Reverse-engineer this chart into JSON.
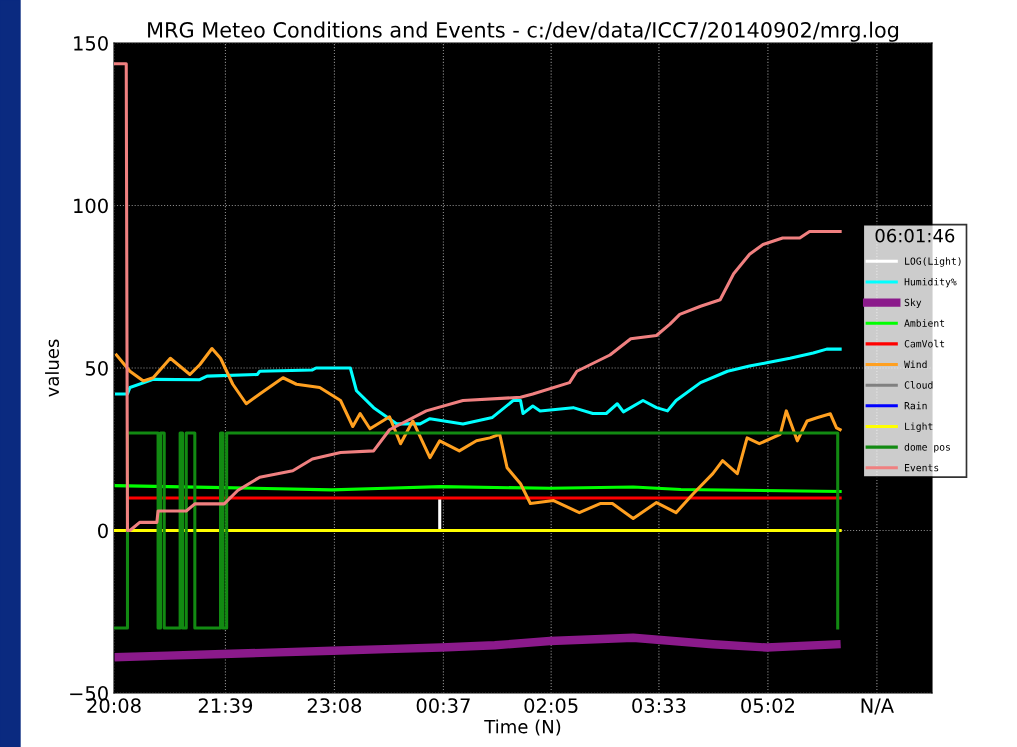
{
  "chart_data": {
    "type": "line",
    "title": "MRG Meteo Conditions and Events - c:/dev/data/ICC7/20140902/mrg.log",
    "xlabel": "Time (N)",
    "ylabel": "values",
    "legend_title": "06:01:46",
    "xlim": [
      "2014-09-02T20:08",
      "2014-09-03T07:16"
    ],
    "xticks": [
      {
        "value": "2014-09-02T20:08",
        "label": "20:08"
      },
      {
        "value": "2014-09-02T21:39",
        "label": "21:39"
      },
      {
        "value": "2014-09-02T23:08",
        "label": "23:08"
      },
      {
        "value": "2014-09-03T00:37",
        "label": "00:37"
      },
      {
        "value": "2014-09-03T02:05",
        "label": "02:05"
      },
      {
        "value": "2014-09-03T03:33",
        "label": "03:33"
      },
      {
        "value": "2014-09-03T05:02",
        "label": "05:02"
      },
      {
        "value": "2014-09-03T06:31",
        "label": "N/A"
      }
    ],
    "ylim": [
      -50,
      150
    ],
    "yticks": [
      {
        "value": -50,
        "label": "−50"
      },
      0,
      50,
      100,
      150
    ],
    "grid": true,
    "legend": "right",
    "series": [
      {
        "name": "LOG(Light)",
        "color": "#ffffff",
        "x": [
          "2014-09-03T00:34",
          "2014-09-03T00:34"
        ],
        "values": [
          0,
          9.2
        ]
      },
      {
        "name": "Humidity%",
        "color": "#00ffff",
        "x": [
          "2014-09-02T20:10",
          "2014-09-02T20:19",
          "2014-09-02T20:21",
          "2014-09-02T20:40",
          "2014-09-02T21:18",
          "2014-09-02T21:24",
          "2014-09-02T22:05",
          "2014-09-02T22:07",
          "2014-09-02T22:50",
          "2014-09-02T22:53",
          "2014-09-02T23:21",
          "2014-09-02T23:26",
          "2014-09-02T23:40",
          "2014-09-02T23:59",
          "2014-09-03T00:18",
          "2014-09-03T00:26",
          "2014-09-03T00:53",
          "2014-09-03T01:17",
          "2014-09-03T01:34",
          "2014-09-03T01:40",
          "2014-09-03T01:42",
          "2014-09-03T01:50",
          "2014-09-03T01:56",
          "2014-09-03T02:23",
          "2014-09-03T02:39",
          "2014-09-03T02:50",
          "2014-09-03T02:59",
          "2014-09-03T03:04",
          "2014-09-03T03:20",
          "2014-09-03T03:31",
          "2014-09-03T03:40",
          "2014-09-03T03:47",
          "2014-09-03T04:07",
          "2014-09-03T04:29",
          "2014-09-03T04:47",
          "2014-09-03T05:01",
          "2014-09-03T05:20",
          "2014-09-03T05:39",
          "2014-09-03T05:50",
          "2014-09-03T06:01"
        ],
        "values": [
          42,
          42,
          44,
          46.5,
          46.4,
          47.5,
          48,
          49,
          49.4,
          50,
          50,
          43,
          37.8,
          32.8,
          32.8,
          34.4,
          32.8,
          34.8,
          40,
          40,
          36,
          38.3,
          36.8,
          37.8,
          36,
          36,
          39,
          36.5,
          40,
          37.8,
          36.8,
          40,
          45.5,
          49,
          50.6,
          51.6,
          53,
          54.6,
          55.8,
          55.8
        ]
      },
      {
        "name": "Sky",
        "color": "#8b1a8b",
        "x": [
          "2014-09-02T20:08",
          "2014-09-02T20:52",
          "2014-09-02T21:37",
          "2014-09-02T22:22",
          "2014-09-02T23:06",
          "2014-09-02T23:50",
          "2014-09-03T00:35",
          "2014-09-03T01:19",
          "2014-09-03T02:04",
          "2014-09-03T03:12",
          "2014-09-03T04:17",
          "2014-09-03T05:01",
          "2014-09-03T05:58"
        ],
        "values": [
          -39,
          -38.5,
          -38,
          -37.5,
          -37,
          -36.5,
          -36,
          -35.3,
          -34,
          -33,
          -35,
          -36,
          -35
        ]
      },
      {
        "name": "Ambient",
        "color": "#00ff00",
        "x": [
          "2014-09-02T20:08",
          "2014-09-02T21:37",
          "2014-09-02T23:06",
          "2014-09-02T23:50",
          "2014-09-03T00:35",
          "2014-09-03T02:04",
          "2014-09-03T03:12",
          "2014-09-03T03:51",
          "2014-09-03T06:01"
        ],
        "values": [
          13.8,
          13.2,
          12.5,
          13,
          13.5,
          13,
          13.4,
          12.6,
          12
        ]
      },
      {
        "name": "CamVolt",
        "color": "#ff0000",
        "x": [
          "2014-09-02T20:21",
          "2014-09-03T06:01"
        ],
        "values": [
          10,
          10
        ]
      },
      {
        "name": "Wind",
        "color": "#ffa020",
        "x": [
          "2014-09-02T20:10",
          "2014-09-02T20:21",
          "2014-09-02T20:32",
          "2014-09-02T20:40",
          "2014-09-02T20:54",
          "2014-09-02T21:10",
          "2014-09-02T21:18",
          "2014-09-02T21:28",
          "2014-09-02T21:35",
          "2014-09-02T21:45",
          "2014-09-02T21:56",
          "2014-09-02T22:07",
          "2014-09-02T22:26",
          "2014-09-02T22:37",
          "2014-09-02T22:56",
          "2014-09-02T23:13",
          "2014-09-02T23:23",
          "2014-09-02T23:29",
          "2014-09-02T23:37",
          "2014-09-02T23:53",
          "2014-09-03T00:02",
          "2014-09-03T00:12",
          "2014-09-03T00:26",
          "2014-09-03T00:34",
          "2014-09-03T00:50",
          "2014-09-03T01:04",
          "2014-09-03T01:15",
          "2014-09-03T01:23",
          "2014-09-03T01:29",
          "2014-09-03T01:40",
          "2014-09-03T01:48",
          "2014-09-03T02:07",
          "2014-09-03T02:28",
          "2014-09-03T02:45",
          "2014-09-03T02:55",
          "2014-09-03T03:12",
          "2014-09-03T03:31",
          "2014-09-03T03:47",
          "2014-09-03T04:01",
          "2014-09-03T04:17",
          "2014-09-03T04:25",
          "2014-09-03T04:37",
          "2014-09-03T04:45",
          "2014-09-03T04:55",
          "2014-09-03T05:12",
          "2014-09-03T05:17",
          "2014-09-03T05:26",
          "2014-09-03T05:34",
          "2014-09-03T05:42",
          "2014-09-03T05:53",
          "2014-09-03T05:58",
          "2014-09-03T06:01"
        ],
        "values": [
          54,
          49,
          46,
          47,
          53,
          48,
          51,
          56,
          53,
          45,
          39,
          42,
          47,
          45,
          44,
          40,
          32,
          36,
          31.3,
          35,
          26.7,
          33.7,
          22.4,
          27.6,
          24.5,
          27.6,
          28.5,
          29.6,
          19.3,
          14.4,
          8.3,
          9.2,
          5.5,
          8.3,
          8.3,
          3.7,
          8.6,
          5.5,
          11.3,
          17.5,
          21.5,
          17.5,
          28.5,
          26.7,
          29.6,
          36.8,
          27.6,
          33.7,
          34.7,
          35.9,
          31.6,
          31
        ]
      },
      {
        "name": "Cloud",
        "color": "#808080"
      },
      {
        "name": "Rain",
        "color": "#0000ff"
      },
      {
        "name": "Light",
        "color": "#ffff00",
        "x": [
          "2014-09-02T20:08",
          "2014-09-03T06:01"
        ],
        "values": [
          0,
          0
        ]
      },
      {
        "name": "dome pos",
        "color": "#128a12",
        "x": [
          "2014-09-02T20:08",
          "2014-09-02T20:19",
          "2014-09-02T20:19",
          "2014-09-02T20:44",
          "2014-09-02T20:44",
          "2014-09-02T20:46",
          "2014-09-02T20:46",
          "2014-09-02T20:49",
          "2014-09-02T20:49",
          "2014-09-02T20:52",
          "2014-09-02T21:02",
          "2014-09-02T21:02",
          "2014-09-02T21:04",
          "2014-09-02T21:04",
          "2014-09-02T21:07",
          "2014-09-02T21:07",
          "2014-09-02T21:14",
          "2014-09-02T21:14",
          "2014-09-02T21:35",
          "2014-09-02T21:35",
          "2014-09-02T21:37",
          "2014-09-02T21:37",
          "2014-09-02T21:40",
          "2014-09-02T21:40",
          "2014-09-03T05:59",
          "2014-09-03T05:59"
        ],
        "values": [
          -30,
          -30,
          30,
          30,
          -30,
          -30,
          30,
          30,
          -30,
          -30,
          -30,
          30,
          30,
          -30,
          -30,
          30,
          30,
          -30,
          -30,
          30,
          30,
          -30,
          -30,
          30,
          30,
          -30
        ]
      },
      {
        "name": "Events",
        "color": "#f08080",
        "x": [
          "2014-09-02T20:08",
          "2014-09-02T20:18",
          "2014-09-02T20:19",
          "2014-09-02T20:21",
          "2014-09-02T20:29",
          "2014-09-02T20:43",
          "2014-09-02T20:44",
          "2014-09-02T21:07",
          "2014-09-02T21:14",
          "2014-09-02T21:38",
          "2014-09-02T21:49",
          "2014-09-02T22:07",
          "2014-09-02T22:34",
          "2014-09-02T22:50",
          "2014-09-02T23:13",
          "2014-09-02T23:40",
          "2014-09-02T23:53",
          "2014-09-03T00:23",
          "2014-09-03T00:53",
          "2014-09-03T01:40",
          "2014-09-03T01:50",
          "2014-09-03T02:20",
          "2014-09-03T02:26",
          "2014-09-03T02:53",
          "2014-09-03T03:10",
          "2014-09-03T03:31",
          "2014-09-03T03:42",
          "2014-09-03T03:50",
          "2014-09-03T04:07",
          "2014-09-03T04:23",
          "2014-09-03T04:34",
          "2014-09-03T04:47",
          "2014-09-03T04:58",
          "2014-09-03T05:14",
          "2014-09-03T05:28",
          "2014-09-03T05:36",
          "2014-09-03T06:01"
        ],
        "values": [
          143.6,
          143.6,
          0,
          0,
          2.5,
          2.5,
          6,
          6,
          8.2,
          8.2,
          12.3,
          16.4,
          18.4,
          22,
          24,
          24.5,
          31,
          36.8,
          40,
          41,
          42,
          45.5,
          49,
          54,
          59,
          60,
          63.5,
          66.5,
          69,
          71,
          79,
          85,
          88,
          90,
          90,
          92,
          92
        ]
      }
    ]
  }
}
